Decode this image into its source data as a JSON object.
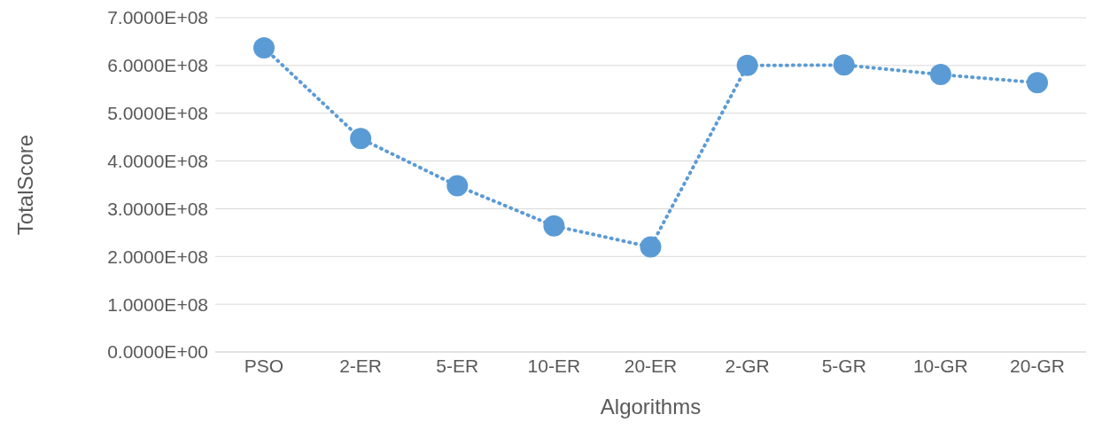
{
  "chart_data": {
    "type": "line",
    "xlabel": "Algorithms",
    "ylabel": "TotalScore",
    "categories": [
      "PSO",
      "2-ER",
      "5-ER",
      "10-ER",
      "20-ER",
      "2-GR",
      "5-GR",
      "10-GR",
      "20-GR"
    ],
    "series": [
      {
        "color": "#5b9bd5",
        "values": [
          637000000,
          447000000,
          348000000,
          264000000,
          220000000,
          600000000,
          601000000,
          581000000,
          564000000
        ]
      }
    ],
    "ylim": [
      0,
      700000000
    ],
    "yticks": [
      {
        "value": 0,
        "label": "0.0000E+00"
      },
      {
        "value": 100000000,
        "label": "1.0000E+08"
      },
      {
        "value": 200000000,
        "label": "2.0000E+08"
      },
      {
        "value": 300000000,
        "label": "3.0000E+08"
      },
      {
        "value": 400000000,
        "label": "4.0000E+08"
      },
      {
        "value": 500000000,
        "label": "5.0000E+08"
      },
      {
        "value": 600000000,
        "label": "6.0000E+08"
      },
      {
        "value": 700000000,
        "label": "7.0000E+08"
      }
    ],
    "grid": "y",
    "marker": "circle",
    "line_style": "dotted"
  }
}
